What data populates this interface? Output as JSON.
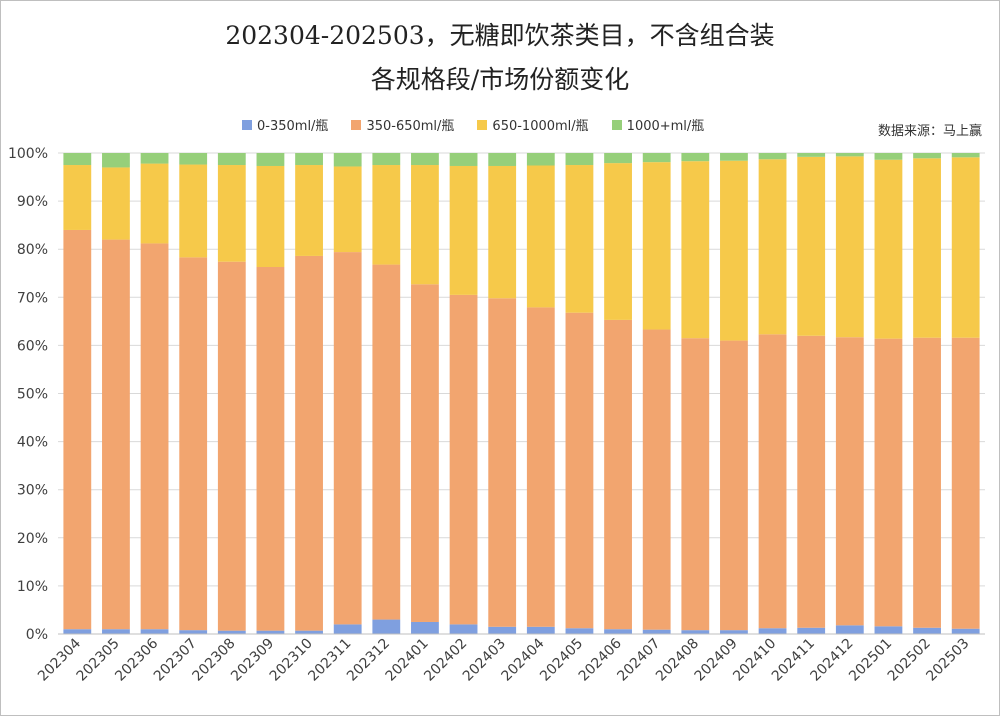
{
  "title_line1": "202304-202503，无糖即饮茶类目，不含组合装",
  "title_line2": "各规格段/市场份额变化",
  "source_note": "数据来源：马上赢",
  "colors": {
    "series_0_350": "#7f9fdf",
    "series_350_650": "#f2a56f",
    "series_650_1000": "#f6c94a",
    "series_1000_plus": "#96cf7a",
    "gridline": "#d9d9d9",
    "axis_text": "#404040"
  },
  "chart_data": {
    "type": "bar",
    "stacked": true,
    "title": "202304-202503，无糖即饮茶类目，不含组合装 各规格段/市场份额变化",
    "xlabel": "",
    "ylabel": "",
    "ylim": [
      0,
      100
    ],
    "y_ticks": [
      "0%",
      "10%",
      "20%",
      "30%",
      "40%",
      "50%",
      "60%",
      "70%",
      "80%",
      "90%",
      "100%"
    ],
    "grid": true,
    "legend_position": "top",
    "categories": [
      "202304",
      "202305",
      "202306",
      "202307",
      "202308",
      "202309",
      "202310",
      "202311",
      "202312",
      "202401",
      "202402",
      "202403",
      "202404",
      "202405",
      "202406",
      "202407",
      "202408",
      "202409",
      "202410",
      "202411",
      "202412",
      "202501",
      "202502",
      "202503"
    ],
    "series": [
      {
        "name": "0-350ml/瓶",
        "color": "#7f9fdf",
        "values": [
          1.0,
          1.0,
          1.0,
          0.8,
          0.7,
          0.7,
          0.7,
          2.0,
          3.0,
          2.5,
          2.0,
          1.5,
          1.5,
          1.2,
          1.0,
          0.9,
          0.8,
          0.8,
          1.2,
          1.3,
          1.8,
          1.6,
          1.3,
          1.1
        ]
      },
      {
        "name": "350-650ml/瓶",
        "color": "#f2a56f",
        "values": [
          83.0,
          81.0,
          80.2,
          77.5,
          76.7,
          75.6,
          77.9,
          77.4,
          73.8,
          70.2,
          68.5,
          68.3,
          66.4,
          65.6,
          64.3,
          62.4,
          60.7,
          60.2,
          61.1,
          60.7,
          59.9,
          59.8,
          60.3,
          60.5
        ]
      },
      {
        "name": "650-1000ml/瓶",
        "color": "#f6c94a",
        "values": [
          13.5,
          15.0,
          16.6,
          19.3,
          20.1,
          21.0,
          18.9,
          17.8,
          20.7,
          24.8,
          26.8,
          27.5,
          29.5,
          30.7,
          32.6,
          34.8,
          36.8,
          37.4,
          36.4,
          37.2,
          37.6,
          37.2,
          37.3,
          37.5
        ]
      },
      {
        "name": "1000+ml/瓶",
        "color": "#96cf7a",
        "values": [
          2.5,
          3.0,
          2.2,
          2.4,
          2.5,
          2.7,
          2.5,
          2.8,
          2.5,
          2.5,
          2.7,
          2.7,
          2.6,
          2.5,
          2.1,
          1.9,
          1.7,
          1.6,
          1.3,
          0.8,
          0.7,
          1.4,
          1.1,
          0.9
        ]
      }
    ]
  }
}
